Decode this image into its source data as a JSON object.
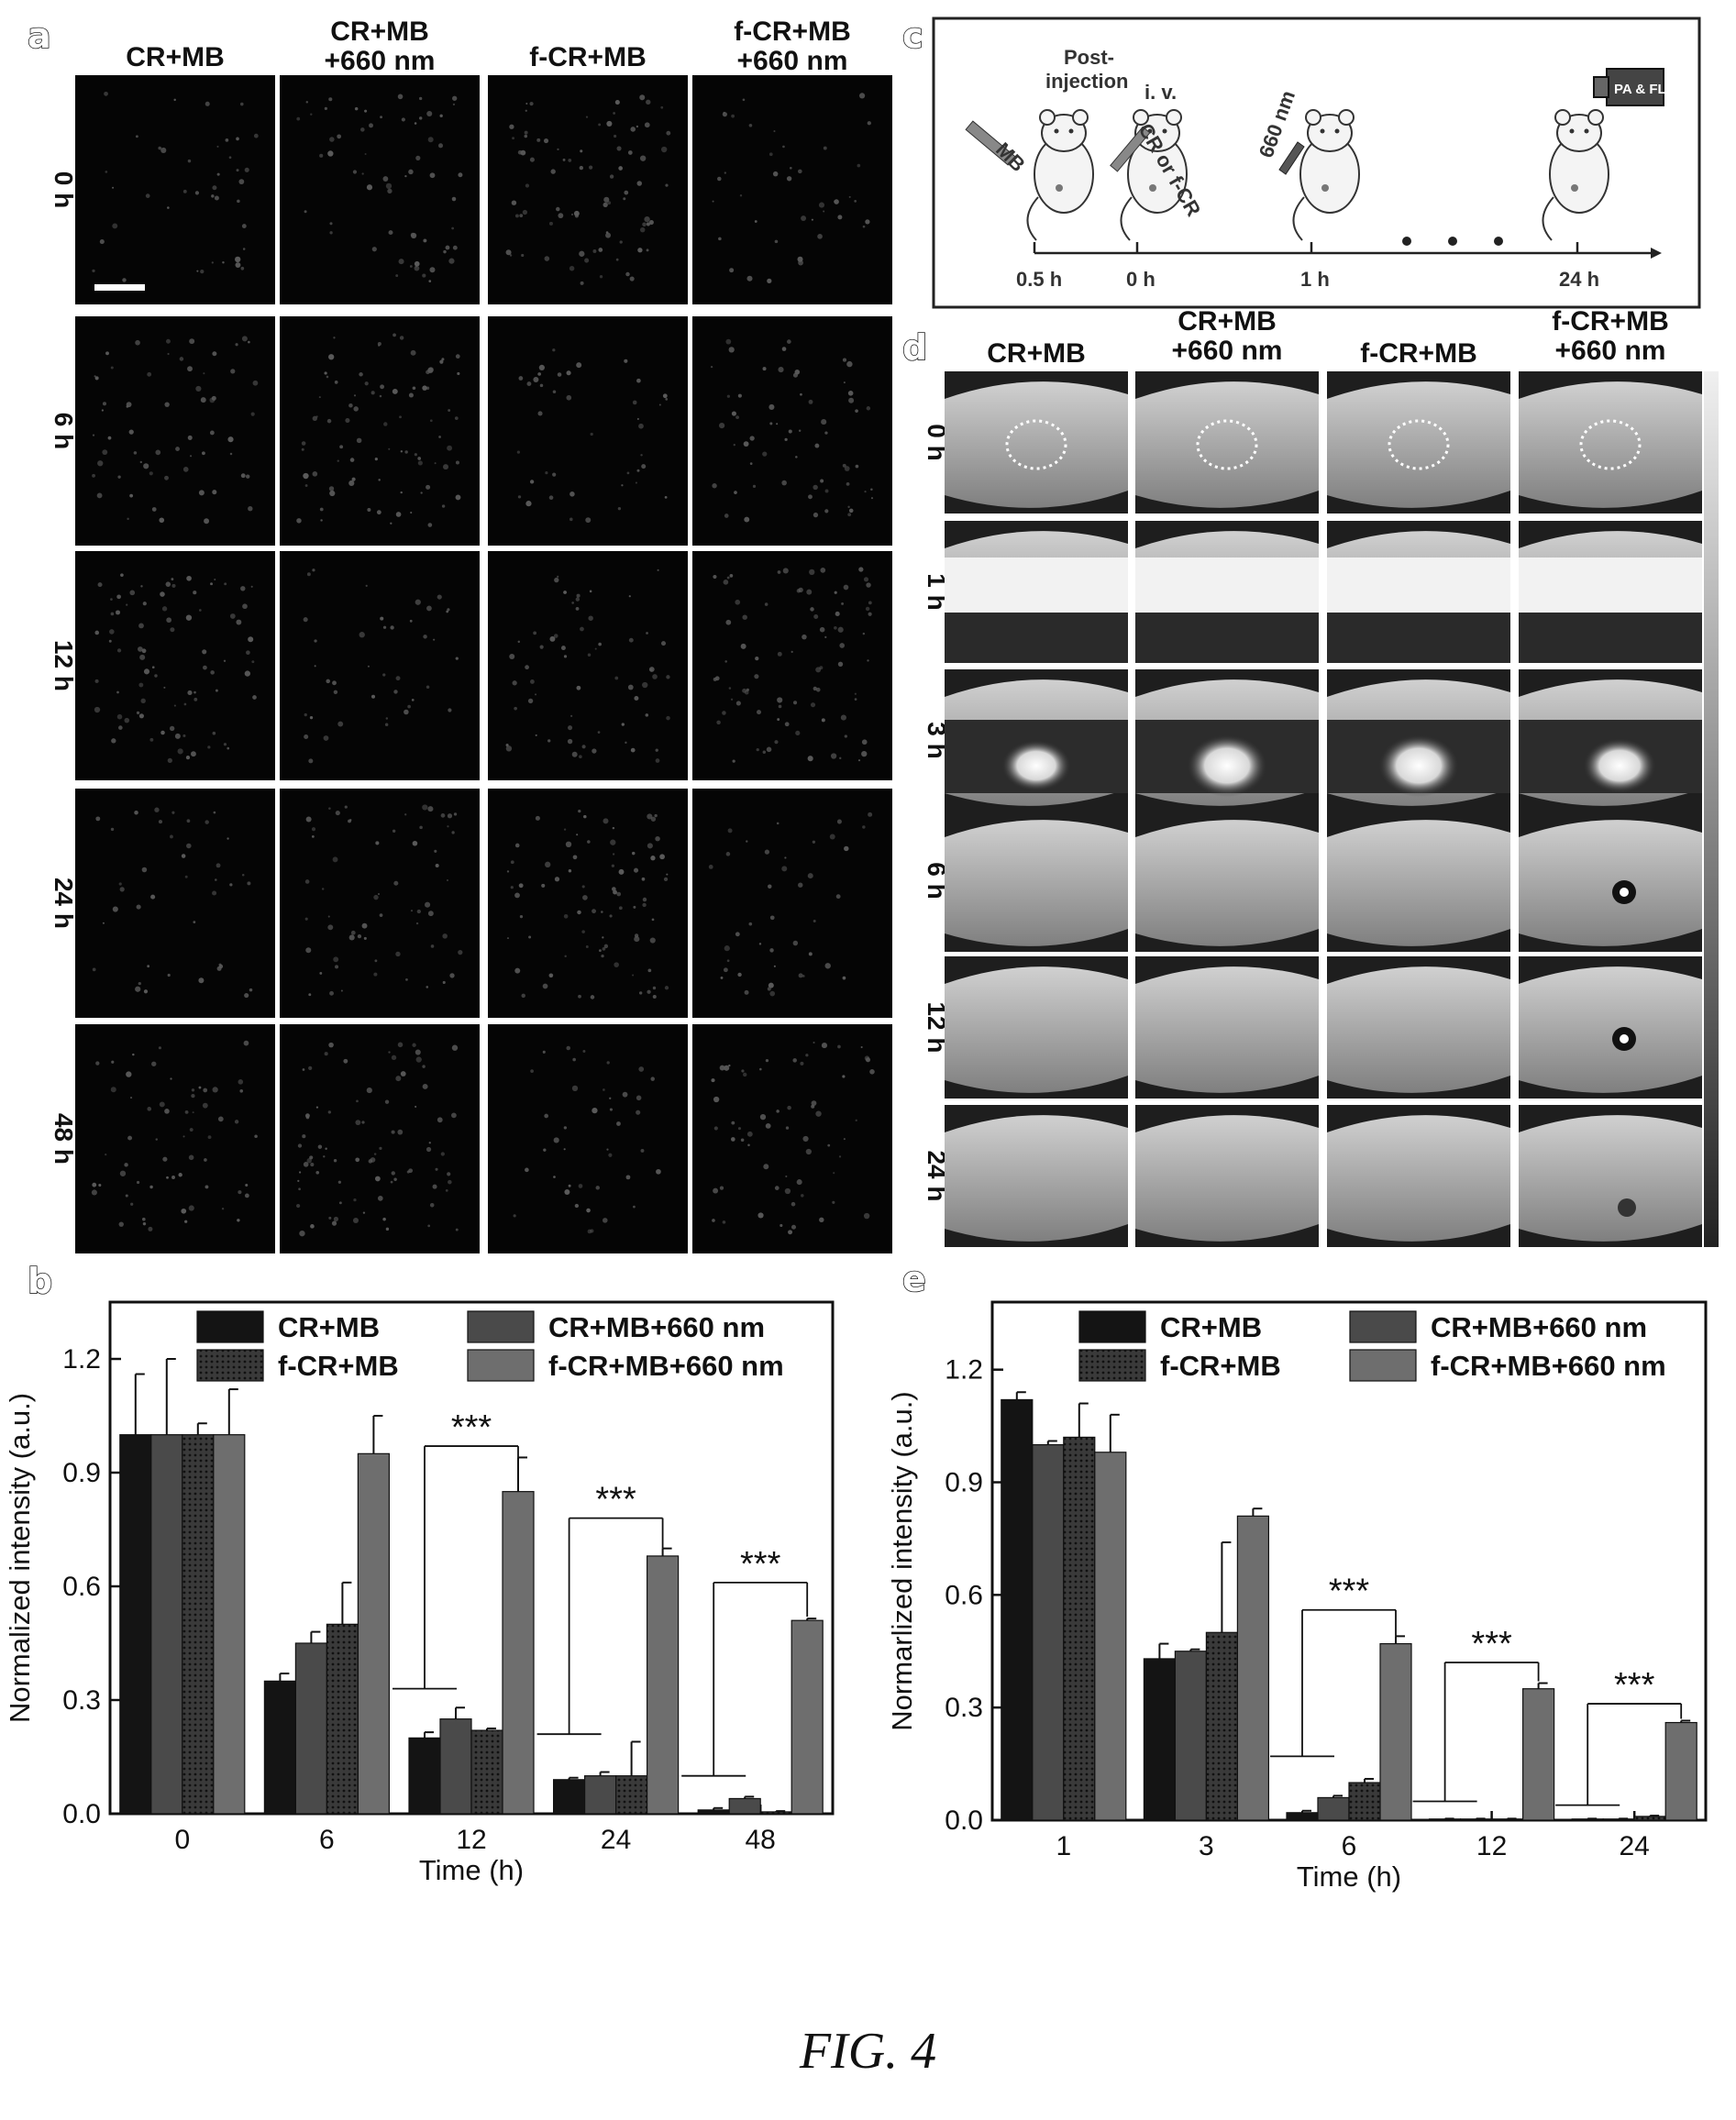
{
  "figure_caption": "FIG. 4",
  "panel_labels": {
    "a": "a",
    "b": "b",
    "c": "c",
    "d": "d",
    "e": "e"
  },
  "panel_a": {
    "columns": [
      "CR+MB",
      "CR+MB\n+660 nm",
      "f-CR+MB",
      "f-CR+MB\n+660 nm"
    ],
    "rows": [
      "0 h",
      "6 h",
      "12 h",
      "24 h",
      "48 h"
    ]
  },
  "panel_c": {
    "labels": [
      "Post-\ninjection",
      "MB",
      "i. v.",
      "CR or f-CR",
      "660 nm",
      "PA & FL"
    ],
    "timeline": [
      "0.5 h",
      "0 h",
      "1 h",
      "24 h"
    ]
  },
  "panel_d": {
    "columns": [
      "CR+MB",
      "CR+MB\n+660 nm",
      "f-CR+MB",
      "f-CR+MB\n+660 nm"
    ],
    "rows": [
      "0 h",
      "1 h",
      "3 h",
      "6 h",
      "12 h",
      "24 h"
    ]
  },
  "colors": {
    "bar_dark": "#141414",
    "bar_mid": "#4a4a4a",
    "bar_dotted": "#2e2e2e",
    "bar_light": "#6e6e6e"
  },
  "chart_data": [
    {
      "panel": "b",
      "type": "bar",
      "xlabel": "Time (h)",
      "ylabel": "Normalized intensity (a.u.)",
      "categories": [
        "0",
        "6",
        "12",
        "24",
        "48"
      ],
      "ylim": [
        0,
        1.35
      ],
      "yticks": [
        "0.0",
        "0.3",
        "0.6",
        "0.9",
        "1.2"
      ],
      "legend": "top",
      "series": [
        {
          "name": "CR+MB",
          "values": [
            1.0,
            0.35,
            0.2,
            0.09,
            0.01
          ],
          "errors": [
            0.16,
            0.02,
            0.015,
            0.005,
            0.005
          ]
        },
        {
          "name": "CR+MB+660 nm",
          "values": [
            1.0,
            0.45,
            0.25,
            0.1,
            0.04
          ],
          "errors": [
            0.2,
            0.03,
            0.03,
            0.01,
            0.005
          ]
        },
        {
          "name": "f-CR+MB",
          "values": [
            1.0,
            0.5,
            0.22,
            0.1,
            0.005
          ],
          "errors": [
            0.03,
            0.11,
            0.005,
            0.09,
            0.002
          ]
        },
        {
          "name": "f-CR+MB+660 nm",
          "values": [
            1.0,
            0.95,
            0.85,
            0.68,
            0.51
          ],
          "errors": [
            0.12,
            0.1,
            0.09,
            0.02,
            0.005
          ]
        }
      ],
      "significance": [
        "***",
        "***",
        "***"
      ]
    },
    {
      "panel": "e",
      "type": "bar",
      "xlabel": "Time (h)",
      "ylabel": "Normarlized intensity (a.u.)",
      "categories": [
        "1",
        "3",
        "6",
        "12",
        "24"
      ],
      "ylim": [
        0,
        1.38
      ],
      "yticks": [
        "0.0",
        "0.3",
        "0.6",
        "0.9",
        "1.2"
      ],
      "legend": "top",
      "series": [
        {
          "name": "CR+MB",
          "values": [
            1.12,
            0.43,
            0.02,
            0.003,
            0.003
          ],
          "errors": [
            0.02,
            0.04,
            0.005,
            0.001,
            0.001
          ]
        },
        {
          "name": "CR+MB+660 nm",
          "values": [
            1.0,
            0.45,
            0.06,
            0.003,
            0.003
          ],
          "errors": [
            0.01,
            0.005,
            0.005,
            0.001,
            0.001
          ]
        },
        {
          "name": "f-CR+MB",
          "values": [
            1.02,
            0.5,
            0.1,
            0.003,
            0.01
          ],
          "errors": [
            0.09,
            0.24,
            0.01,
            0.001,
            0.002
          ]
        },
        {
          "name": "f-CR+MB+660 nm",
          "values": [
            0.98,
            0.81,
            0.47,
            0.35,
            0.26
          ],
          "errors": [
            0.1,
            0.02,
            0.02,
            0.015,
            0.005
          ]
        }
      ],
      "significance": [
        "***",
        "***",
        "***"
      ]
    }
  ]
}
